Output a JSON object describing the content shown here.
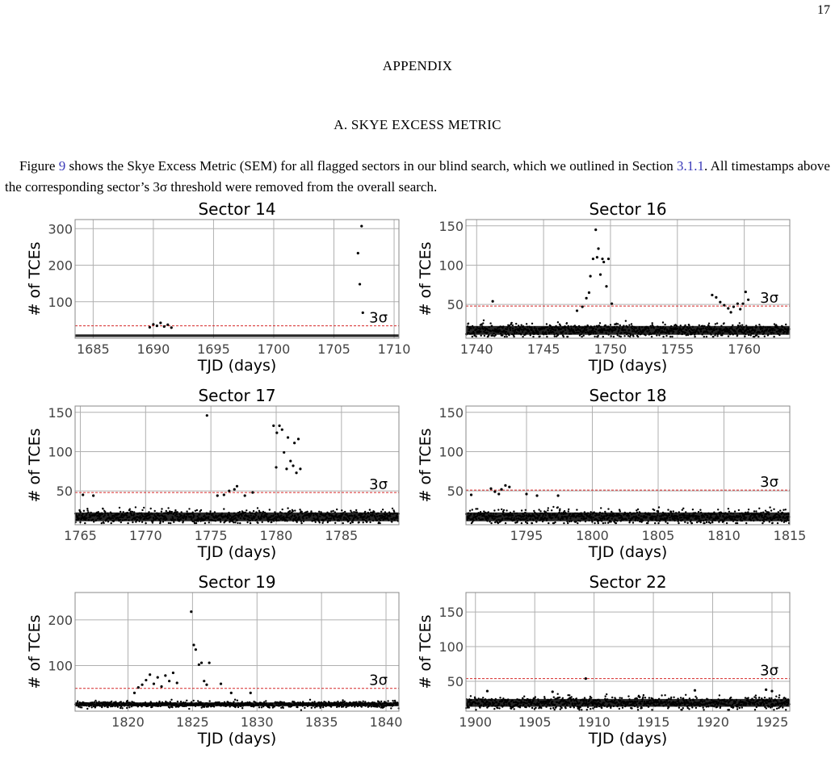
{
  "page_number": "17",
  "appendix_heading": "APPENDIX",
  "section_heading": "A. SKYE EXCESS METRIC",
  "paragraph": {
    "part1": "Figure ",
    "fig_ref": "9",
    "part2": " shows the Skye Excess Metric (SEM) for all flagged sectors in our blind search, which we outlined in Section ",
    "sec_ref": "3.1.1",
    "part3": ". All timestamps above the corresponding sector’s 3σ threshold were removed from the overall search."
  },
  "colors": {
    "points": "#000000",
    "threshold": "#d62728",
    "grid": "#b0b0b0",
    "link": "#3a3ab8"
  },
  "chart_data": [
    {
      "type": "scatter",
      "title": "Sector 14",
      "xlabel": "TJD (days)",
      "ylabel": "# of TCEs",
      "xlim": [
        1683.5,
        1710.4
      ],
      "ylim": [
        0,
        325
      ],
      "xticks": [
        1685,
        1690,
        1695,
        1700,
        1705,
        1710
      ],
      "yticks": [
        100,
        200,
        300
      ],
      "xtick_labels": [
        "1685",
        "1690",
        "1695",
        "1700",
        "1705",
        "1710"
      ],
      "ytick_labels": [
        "100",
        "200",
        "300"
      ],
      "grid": true,
      "threshold": 34,
      "threshold_label": "3σ",
      "baseline": {
        "center": 7,
        "spread": 5,
        "dense_lines": [
          7
        ],
        "count": 0
      },
      "outliers": [
        [
          1689.7,
          30
        ],
        [
          1690.0,
          38
        ],
        [
          1690.3,
          34
        ],
        [
          1690.6,
          42
        ],
        [
          1690.9,
          32
        ],
        [
          1691.2,
          37
        ],
        [
          1691.5,
          29
        ],
        [
          1707.3,
          307
        ],
        [
          1707.0,
          233
        ],
        [
          1707.15,
          148
        ],
        [
          1707.4,
          70
        ]
      ]
    },
    {
      "type": "scatter",
      "title": "Sector 16",
      "xlabel": "TJD (days)",
      "ylabel": "# of TCEs",
      "xlim": [
        1739.2,
        1763.4
      ],
      "ylim": [
        7,
        158
      ],
      "xticks": [
        1740,
        1745,
        1750,
        1755,
        1760
      ],
      "yticks": [
        50,
        100,
        150
      ],
      "xtick_labels": [
        "1740",
        "1745",
        "1750",
        "1755",
        "1760"
      ],
      "ytick_labels": [
        "50",
        "100",
        "150"
      ],
      "grid": true,
      "threshold": 48,
      "threshold_label": "3σ",
      "baseline": {
        "center": 17,
        "spread": 8,
        "dense_lines": [
          17
        ],
        "count": 900
      },
      "outliers": [
        [
          1741.2,
          54
        ],
        [
          1747.5,
          42
        ],
        [
          1747.9,
          47
        ],
        [
          1748.2,
          58
        ],
        [
          1748.4,
          65
        ],
        [
          1748.5,
          86
        ],
        [
          1748.7,
          108
        ],
        [
          1748.9,
          145
        ],
        [
          1749.0,
          110
        ],
        [
          1749.1,
          121
        ],
        [
          1749.25,
          88
        ],
        [
          1749.4,
          108
        ],
        [
          1749.5,
          104
        ],
        [
          1749.7,
          73
        ],
        [
          1749.85,
          108
        ],
        [
          1750.1,
          51
        ],
        [
          1757.6,
          62
        ],
        [
          1757.9,
          59
        ],
        [
          1758.2,
          53
        ],
        [
          1758.5,
          49
        ],
        [
          1758.8,
          45
        ],
        [
          1759.0,
          40
        ],
        [
          1759.2,
          47
        ],
        [
          1759.5,
          51
        ],
        [
          1759.7,
          44
        ],
        [
          1759.9,
          51
        ],
        [
          1760.1,
          66
        ],
        [
          1760.3,
          56
        ]
      ]
    },
    {
      "type": "scatter",
      "title": "Sector 17",
      "xlabel": "TJD (days)",
      "ylabel": "# of TCEs",
      "xlim": [
        1764.6,
        1789.4
      ],
      "ylim": [
        7,
        158
      ],
      "xticks": [
        1765,
        1770,
        1775,
        1780,
        1785
      ],
      "yticks": [
        50,
        100,
        150
      ],
      "xtick_labels": [
        "1765",
        "1770",
        "1775",
        "1780",
        "1785"
      ],
      "ytick_labels": [
        "50",
        "100",
        "150"
      ],
      "grid": true,
      "threshold": 48,
      "threshold_label": "3σ",
      "baseline": {
        "center": 17,
        "spread": 8,
        "dense_lines": [
          17
        ],
        "count": 900
      },
      "outliers": [
        [
          1765.2,
          45
        ],
        [
          1766.0,
          44
        ],
        [
          1774.7,
          146
        ],
        [
          1775.5,
          44
        ],
        [
          1776.0,
          45
        ],
        [
          1776.4,
          50
        ],
        [
          1776.8,
          52
        ],
        [
          1777.0,
          56
        ],
        [
          1777.6,
          44
        ],
        [
          1778.2,
          48
        ],
        [
          1779.8,
          133
        ],
        [
          1780.0,
          80
        ],
        [
          1780.05,
          124
        ],
        [
          1780.25,
          133
        ],
        [
          1780.45,
          128
        ],
        [
          1780.6,
          99
        ],
        [
          1780.8,
          78
        ],
        [
          1780.9,
          118
        ],
        [
          1781.1,
          88
        ],
        [
          1781.3,
          82
        ],
        [
          1781.4,
          111
        ],
        [
          1781.55,
          73
        ],
        [
          1781.7,
          116
        ],
        [
          1781.85,
          78
        ]
      ]
    },
    {
      "type": "scatter",
      "title": "Sector 18",
      "xlabel": "TJD (days)",
      "ylabel": "# of TCEs",
      "xlim": [
        1790.4,
        1815.0
      ],
      "ylim": [
        7,
        158
      ],
      "xticks": [
        1795,
        1800,
        1805,
        1810,
        1815
      ],
      "yticks": [
        50,
        100,
        150
      ],
      "xtick_labels": [
        "1795",
        "1800",
        "1805",
        "1810",
        "1815"
      ],
      "ytick_labels": [
        "50",
        "100",
        "150"
      ],
      "grid": true,
      "threshold": 51,
      "threshold_label": "3σ",
      "baseline": {
        "center": 17,
        "spread": 8,
        "dense_lines": [
          17
        ],
        "count": 900
      },
      "outliers": [
        [
          1790.8,
          45
        ],
        [
          1792.3,
          53
        ],
        [
          1792.6,
          49
        ],
        [
          1792.9,
          46
        ],
        [
          1793.1,
          52
        ],
        [
          1793.4,
          57
        ],
        [
          1793.7,
          55
        ],
        [
          1795.0,
          46
        ],
        [
          1795.8,
          44
        ],
        [
          1797.4,
          44
        ]
      ]
    },
    {
      "type": "scatter",
      "title": "Sector 19",
      "xlabel": "TJD (days)",
      "ylabel": "# of TCEs",
      "xlim": [
        1815.9,
        1841.0
      ],
      "ylim": [
        0,
        260
      ],
      "xticks": [
        1820,
        1825,
        1830,
        1835,
        1840
      ],
      "yticks": [
        100,
        200
      ],
      "xtick_labels": [
        "1820",
        "1825",
        "1830",
        "1835",
        "1840"
      ],
      "ytick_labels": [
        "100",
        "200"
      ],
      "grid": true,
      "threshold": 50,
      "threshold_label": "3σ",
      "baseline": {
        "center": 15,
        "spread": 6,
        "dense_lines": [
          15
        ],
        "count": 900
      },
      "outliers": [
        [
          1820.5,
          40
        ],
        [
          1820.8,
          52
        ],
        [
          1821.1,
          58
        ],
        [
          1821.4,
          68
        ],
        [
          1821.7,
          80
        ],
        [
          1822.0,
          60
        ],
        [
          1822.3,
          74
        ],
        [
          1822.6,
          54
        ],
        [
          1822.9,
          78
        ],
        [
          1823.2,
          66
        ],
        [
          1823.5,
          84
        ],
        [
          1823.8,
          62
        ],
        [
          1824.9,
          218
        ],
        [
          1825.1,
          145
        ],
        [
          1825.25,
          135
        ],
        [
          1825.5,
          102
        ],
        [
          1825.7,
          106
        ],
        [
          1825.9,
          66
        ],
        [
          1826.1,
          58
        ],
        [
          1826.3,
          106
        ],
        [
          1827.2,
          60
        ],
        [
          1828.0,
          40
        ],
        [
          1829.5,
          40
        ]
      ]
    },
    {
      "type": "scatter",
      "title": "Sector 22",
      "xlabel": "TJD (days)",
      "ylabel": "# of TCEs",
      "xlim": [
        1899.2,
        1926.5
      ],
      "ylim": [
        7,
        178
      ],
      "xticks": [
        1900,
        1905,
        1910,
        1915,
        1920,
        1925
      ],
      "yticks": [
        50,
        100,
        150
      ],
      "xtick_labels": [
        "1900",
        "1905",
        "1910",
        "1915",
        "1920",
        "1925"
      ],
      "ytick_labels": [
        "50",
        "100",
        "150"
      ],
      "grid": true,
      "threshold": 54,
      "threshold_label": "3σ",
      "baseline": {
        "center": 19,
        "spread": 8,
        "dense_lines": [
          19
        ],
        "count": 900
      },
      "outliers": [
        [
          1909.3,
          54
        ],
        [
          1901.0,
          36
        ],
        [
          1906.5,
          35
        ],
        [
          1918.5,
          37
        ],
        [
          1924.5,
          38
        ],
        [
          1925.0,
          36
        ]
      ]
    }
  ]
}
